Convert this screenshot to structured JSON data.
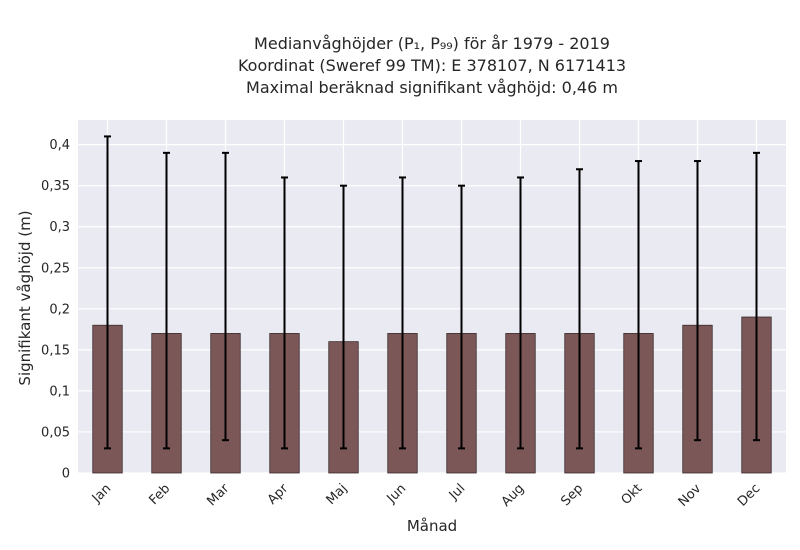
{
  "chart_data": {
    "type": "bar",
    "title_lines": [
      "Medianvåghöjder (P₁, P₉₉) för år 1979 - 2019",
      "Koordinat (Sweref 99 TM): E 378107, N 6171413",
      "Maximal beräknad signifikant våghöjd: 0,46 m"
    ],
    "xlabel": "Månad",
    "ylabel": "Signifikant våghöjd (m)",
    "categories": [
      "Jan",
      "Feb",
      "Mar",
      "Apr",
      "Maj",
      "Jun",
      "Jul",
      "Aug",
      "Sep",
      "Okt",
      "Nov",
      "Dec"
    ],
    "values": [
      0.18,
      0.17,
      0.17,
      0.17,
      0.16,
      0.17,
      0.17,
      0.17,
      0.17,
      0.17,
      0.18,
      0.19
    ],
    "error_low": [
      0.03,
      0.03,
      0.04,
      0.03,
      0.03,
      0.03,
      0.03,
      0.03,
      0.03,
      0.03,
      0.04,
      0.04
    ],
    "error_high": [
      0.41,
      0.39,
      0.39,
      0.36,
      0.35,
      0.36,
      0.35,
      0.36,
      0.37,
      0.38,
      0.38,
      0.39
    ],
    "yticks": [
      0,
      0.05,
      0.1,
      0.15,
      0.2,
      0.25,
      0.3,
      0.35,
      0.4
    ],
    "ytick_labels": [
      "0",
      "0,05",
      "0,1",
      "0,15",
      "0,2",
      "0,25",
      "0,3",
      "0,35",
      "0,4"
    ],
    "ylim": [
      0,
      0.43
    ],
    "grid": true,
    "colors": {
      "bar": "#7b5757",
      "bar_edge": "#3a2a2a",
      "plot_bg": "#eaeaf2",
      "grid": "#ffffff",
      "error": "#000000"
    }
  }
}
